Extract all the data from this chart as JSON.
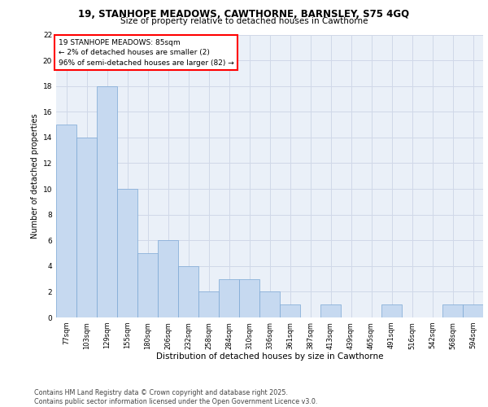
{
  "title1": "19, STANHOPE MEADOWS, CAWTHORNE, BARNSLEY, S75 4GQ",
  "title2": "Size of property relative to detached houses in Cawthorne",
  "xlabel": "Distribution of detached houses by size in Cawthorne",
  "ylabel": "Number of detached properties",
  "bar_labels": [
    "77sqm",
    "103sqm",
    "129sqm",
    "155sqm",
    "180sqm",
    "206sqm",
    "232sqm",
    "258sqm",
    "284sqm",
    "310sqm",
    "336sqm",
    "361sqm",
    "387sqm",
    "413sqm",
    "439sqm",
    "465sqm",
    "491sqm",
    "516sqm",
    "542sqm",
    "568sqm",
    "594sqm"
  ],
  "bar_values": [
    15,
    14,
    18,
    10,
    5,
    6,
    4,
    2,
    3,
    3,
    2,
    1,
    0,
    1,
    0,
    0,
    1,
    0,
    0,
    1,
    1
  ],
  "bar_color": "#c6d9f0",
  "bar_edge_color": "#7ba7d4",
  "annotation_box_text": "19 STANHOPE MEADOWS: 85sqm\n← 2% of detached houses are smaller (2)\n96% of semi-detached houses are larger (82) →",
  "ylim": [
    0,
    22
  ],
  "yticks": [
    0,
    2,
    4,
    6,
    8,
    10,
    12,
    14,
    16,
    18,
    20,
    22
  ],
  "grid_color": "#d0d8e8",
  "bg_color": "#eaf0f8",
  "footer": "Contains HM Land Registry data © Crown copyright and database right 2025.\nContains public sector information licensed under the Open Government Licence v3.0."
}
